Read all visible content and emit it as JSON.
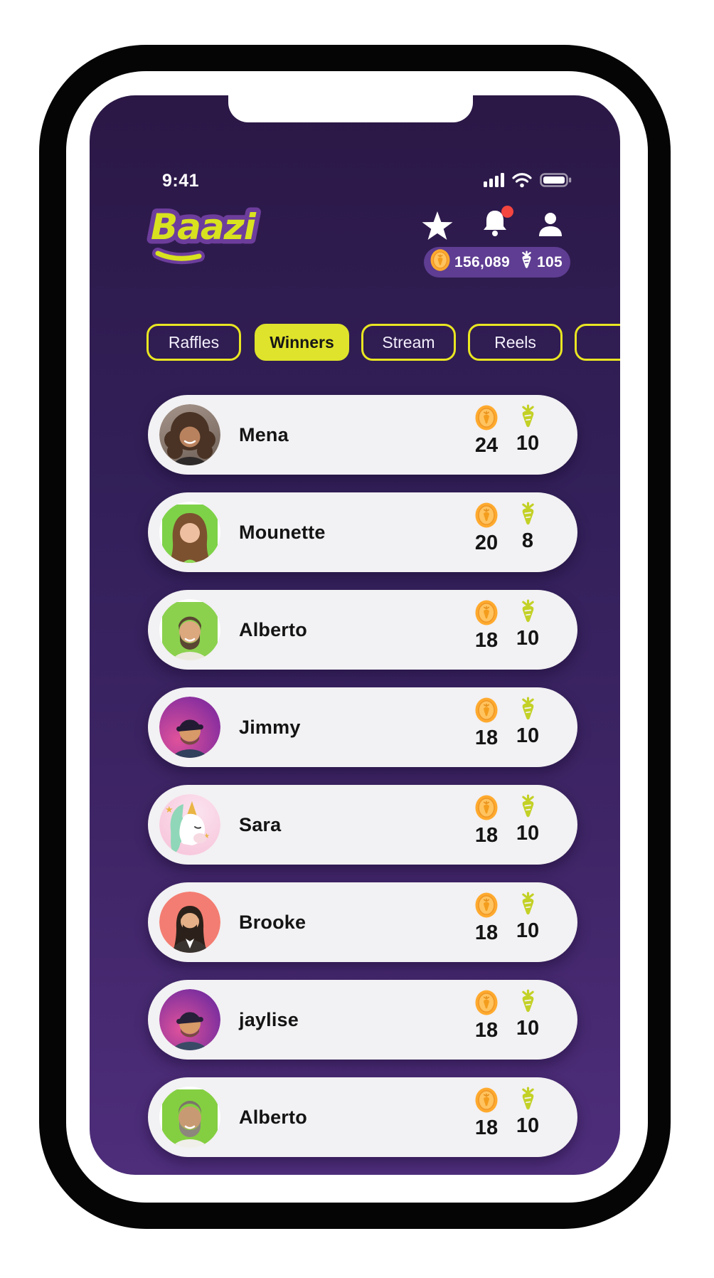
{
  "status_bar": {
    "time": "9:41"
  },
  "header": {
    "logo_text": "Baazi",
    "wallet": {
      "coins": "156,089",
      "carrots": "105"
    },
    "notification_dot": true
  },
  "tabs": [
    {
      "label": "Raffles",
      "active": false
    },
    {
      "label": "Winners",
      "active": true
    },
    {
      "label": "Stream",
      "active": false
    },
    {
      "label": "Reels",
      "active": false
    },
    {
      "label": "",
      "active": false,
      "partial": true
    }
  ],
  "winners": [
    {
      "name": "Mena",
      "coins": "24",
      "carrots": "10",
      "avatar": {
        "style": "curly",
        "shape": "circle",
        "bg": "linear-gradient(160deg,#a5948a,#6e6057)",
        "hair": "#4a3324",
        "skin": "#b9825e",
        "shirt": "#2e2a29"
      }
    },
    {
      "name": "Mounette",
      "coins": "20",
      "carrots": "8",
      "avatar": {
        "style": "long",
        "shape": "square",
        "bg": "#7ed248",
        "hair": "#7c5130",
        "skin": "#eebfa0",
        "shirt": "#8fdc55"
      }
    },
    {
      "name": "Alberto",
      "coins": "18",
      "carrots": "10",
      "avatar": {
        "style": "beard",
        "shape": "square",
        "bg": "#8bd14e",
        "hair": "#5a4632",
        "skin": "#dca87e",
        "shirt": "#eceade"
      }
    },
    {
      "name": "Jimmy",
      "coins": "18",
      "carrots": "10",
      "avatar": {
        "style": "cap",
        "shape": "circle",
        "bg": "radial-gradient(circle at 30% 70%,#e0529b,#8a2f9e 75%)",
        "hair": "#6b4a33",
        "skin": "#d79a68",
        "shirt": "#31405c",
        "cap": "#221b33"
      }
    },
    {
      "name": "Sara",
      "coins": "18",
      "carrots": "10",
      "avatar": {
        "style": "unicorn",
        "shape": "circle",
        "bg": "radial-gradient(circle at 60% 30%,#fbe3ee,#f6c0d8)",
        "mane": "#8fd7b8",
        "horn": "#eab543"
      }
    },
    {
      "name": "Brooke",
      "coins": "18",
      "carrots": "10",
      "avatar": {
        "style": "suit",
        "shape": "circle",
        "bg": "#f37d72",
        "hair": "#2c211a",
        "skin": "#e5b088",
        "shirt": "#39332f"
      }
    },
    {
      "name": "jaylise",
      "coins": "18",
      "carrots": "10",
      "avatar": {
        "style": "cap",
        "shape": "circle",
        "bg": "radial-gradient(circle at 35% 65%,#e0529b,#7d2f9e 75%)",
        "hair": "#6b4a33",
        "skin": "#d79a68",
        "shirt": "#3a4a66",
        "cap": "#262038"
      }
    },
    {
      "name": "Alberto",
      "coins": "18",
      "carrots": "10",
      "avatar": {
        "style": "graybeard",
        "shape": "square",
        "bg": "#84cf41",
        "hair": "#7d756a",
        "beard": "#8d867c",
        "skin": "#c89a73",
        "shirt": "#f0efe9"
      }
    }
  ],
  "colors": {
    "accent_yellow": "#e9e622",
    "tab_active": "#dfe32b",
    "wallet_purple": "#5e3d92",
    "card_bg": "#f2f1f3",
    "coin_gold": "#ffaa2e",
    "coin_light": "#ffc35f",
    "coin_ring": "#ef9726",
    "carrot_green": "#c3d126",
    "badge_red": "#f4453f",
    "logo_yellow": "#d9e21f",
    "logo_purple": "#6d3d9c",
    "screen_top": "#2b1846",
    "screen_bottom": "#4e2d7b"
  }
}
